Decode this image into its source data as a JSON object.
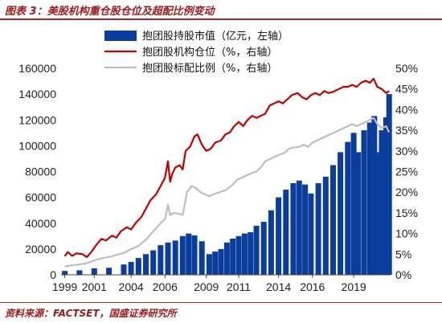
{
  "header": {
    "title": "图表 3：美股机构重仓股仓位及超配比例变动"
  },
  "footer": {
    "source": "资料来源：FACTSET，国盛证券研究所"
  },
  "chart_data": {
    "type": "bar+line",
    "title": "图表 3：美股机构重仓股仓位及超配比例变动",
    "legend_position": "top-center",
    "grid": false,
    "x_range": [
      1998.75,
      2021.1
    ],
    "x_ticks": [
      "1999",
      "2001",
      "2004",
      "2006",
      "2009",
      "2011",
      "2014",
      "2016",
      "2019"
    ],
    "x_tick_values": [
      1999,
      2001,
      2003.5,
      2005.8,
      2008.6,
      2010.8,
      2013.5,
      2015.8,
      2018.6
    ],
    "y_left": {
      "range": [
        0,
        160000
      ],
      "ticks": [
        "0",
        "20000",
        "40000",
        "60000",
        "80000",
        "100000",
        "120000",
        "140000",
        "160000"
      ]
    },
    "y_right": {
      "range": [
        0,
        50
      ],
      "ticks": [
        "0%",
        "5%",
        "10%",
        "15%",
        "20%",
        "25%",
        "30%",
        "35%",
        "40%",
        "45%",
        "50%"
      ]
    },
    "series": [
      {
        "name": "抱团股持股市值（亿元，左轴）",
        "kind": "bar",
        "axis": "left",
        "color": "#0b3d9c",
        "points": [
          [
            1999.0,
            3000
          ],
          [
            2000.0,
            3500
          ],
          [
            2001.0,
            5000
          ],
          [
            2002.0,
            5500
          ],
          [
            2003.0,
            8000
          ],
          [
            2003.5,
            10000
          ],
          [
            2004.0,
            13000
          ],
          [
            2004.5,
            16000
          ],
          [
            2005.0,
            19000
          ],
          [
            2005.5,
            23000
          ],
          [
            2006.0,
            25000
          ],
          [
            2006.5,
            26500
          ],
          [
            2007.0,
            30000
          ],
          [
            2007.4,
            32000
          ],
          [
            2007.8,
            30500
          ],
          [
            2008.3,
            26000
          ],
          [
            2008.8,
            16000
          ],
          [
            2009.2,
            18000
          ],
          [
            2009.6,
            20000
          ],
          [
            2010.0,
            25000
          ],
          [
            2010.4,
            28000
          ],
          [
            2010.8,
            30000
          ],
          [
            2011.2,
            32000
          ],
          [
            2011.6,
            33000
          ],
          [
            2012.0,
            38000
          ],
          [
            2012.5,
            41000
          ],
          [
            2013.0,
            50000
          ],
          [
            2013.5,
            60000
          ],
          [
            2014.0,
            66000
          ],
          [
            2014.5,
            71000
          ],
          [
            2014.9,
            73000
          ],
          [
            2015.3,
            70000
          ],
          [
            2015.7,
            63000
          ],
          [
            2016.2,
            71000
          ],
          [
            2016.7,
            76000
          ],
          [
            2017.2,
            85000
          ],
          [
            2017.7,
            95000
          ],
          [
            2018.2,
            103000
          ],
          [
            2018.6,
            110000
          ],
          [
            2018.9,
            95000
          ],
          [
            2019.3,
            112000
          ],
          [
            2019.7,
            118000
          ],
          [
            2020.0,
            123000
          ],
          [
            2020.2,
            95000
          ],
          [
            2020.5,
            112000
          ],
          [
            2020.8,
            122000
          ],
          [
            2021.0,
            140000
          ]
        ]
      },
      {
        "name": "抱团股机构仓位（%，右轴）",
        "kind": "line",
        "axis": "right",
        "color": "#c00000",
        "points": [
          [
            1999.0,
            4.5
          ],
          [
            1999.2,
            5.5
          ],
          [
            1999.5,
            4.6
          ],
          [
            1999.8,
            5.2
          ],
          [
            2000.2,
            5.0
          ],
          [
            2000.5,
            4.3
          ],
          [
            2000.8,
            5.5
          ],
          [
            2001.2,
            7.5
          ],
          [
            2001.5,
            8.7
          ],
          [
            2001.8,
            8.3
          ],
          [
            2002.2,
            9.5
          ],
          [
            2002.5,
            9.0
          ],
          [
            2002.8,
            10.5
          ],
          [
            2003.2,
            11.5
          ],
          [
            2003.5,
            11.0
          ],
          [
            2003.8,
            12.5
          ],
          [
            2004.2,
            14.0
          ],
          [
            2004.5,
            16.0
          ],
          [
            2004.8,
            18.0
          ],
          [
            2005.2,
            19.5
          ],
          [
            2005.5,
            21.5
          ],
          [
            2005.8,
            23.5
          ],
          [
            2006.0,
            27.5
          ],
          [
            2006.15,
            22.5
          ],
          [
            2006.3,
            24.5
          ],
          [
            2006.5,
            26.0
          ],
          [
            2006.8,
            26.5
          ],
          [
            2007.0,
            25.5
          ],
          [
            2007.2,
            30.0
          ],
          [
            2007.5,
            31.0
          ],
          [
            2007.8,
            33.5
          ],
          [
            2008.0,
            34.0
          ],
          [
            2008.3,
            31.5
          ],
          [
            2008.6,
            30.0
          ],
          [
            2008.9,
            30.5
          ],
          [
            2009.2,
            32.0
          ],
          [
            2009.6,
            32.5
          ],
          [
            2009.9,
            34.0
          ],
          [
            2010.2,
            34.5
          ],
          [
            2010.5,
            36.0
          ],
          [
            2010.8,
            37.0
          ],
          [
            2011.1,
            36.0
          ],
          [
            2011.4,
            37.5
          ],
          [
            2011.7,
            38.5
          ],
          [
            2012.0,
            38.0
          ],
          [
            2012.3,
            38.5
          ],
          [
            2012.6,
            39.0
          ],
          [
            2012.9,
            41.0
          ],
          [
            2013.2,
            41.5
          ],
          [
            2013.5,
            42.0
          ],
          [
            2013.8,
            41.5
          ],
          [
            2014.1,
            42.5
          ],
          [
            2014.4,
            43.5
          ],
          [
            2014.8,
            44.0
          ],
          [
            2015.1,
            43.0
          ],
          [
            2015.4,
            42.5
          ],
          [
            2015.7,
            43.5
          ],
          [
            2016.0,
            44.0
          ],
          [
            2016.3,
            43.5
          ],
          [
            2016.6,
            44.5
          ],
          [
            2016.9,
            44.0
          ],
          [
            2017.2,
            44.3
          ],
          [
            2017.6,
            45.0
          ],
          [
            2017.9,
            45.5
          ],
          [
            2018.2,
            45.5
          ],
          [
            2018.5,
            46.0
          ],
          [
            2018.8,
            45.5
          ],
          [
            2019.1,
            46.5
          ],
          [
            2019.4,
            47.0
          ],
          [
            2019.7,
            46.5
          ],
          [
            2019.95,
            47.5
          ],
          [
            2020.2,
            45.5
          ],
          [
            2020.5,
            45.0
          ],
          [
            2020.8,
            44.0
          ],
          [
            2021.0,
            44.5
          ]
        ]
      },
      {
        "name": "抱团股标配比例（%，右轴）",
        "kind": "line",
        "axis": "right",
        "color": "#bdbdbd",
        "points": [
          [
            1999.0,
            2.0
          ],
          [
            1999.5,
            2.3
          ],
          [
            2000.0,
            2.5
          ],
          [
            2000.5,
            2.8
          ],
          [
            2001.0,
            3.5
          ],
          [
            2001.5,
            4.0
          ],
          [
            2002.0,
            4.3
          ],
          [
            2002.5,
            4.8
          ],
          [
            2003.0,
            5.3
          ],
          [
            2003.5,
            6.2
          ],
          [
            2004.0,
            7.0
          ],
          [
            2004.5,
            8.5
          ],
          [
            2005.0,
            10.5
          ],
          [
            2005.5,
            12.5
          ],
          [
            2005.8,
            13.5
          ],
          [
            2006.0,
            17.0
          ],
          [
            2006.15,
            14.5
          ],
          [
            2006.4,
            15.0
          ],
          [
            2006.7,
            14.8
          ],
          [
            2007.0,
            14.5
          ],
          [
            2007.3,
            20.0
          ],
          [
            2007.6,
            21.5
          ],
          [
            2007.9,
            21.0
          ],
          [
            2008.2,
            20.0
          ],
          [
            2008.5,
            19.5
          ],
          [
            2008.8,
            19.0
          ],
          [
            2009.1,
            19.5
          ],
          [
            2009.5,
            20.0
          ],
          [
            2009.9,
            20.5
          ],
          [
            2010.3,
            21.5
          ],
          [
            2010.7,
            23.0
          ],
          [
            2011.0,
            23.5
          ],
          [
            2011.3,
            24.0
          ],
          [
            2011.6,
            24.5
          ],
          [
            2012.0,
            25.0
          ],
          [
            2012.3,
            26.0
          ],
          [
            2012.6,
            27.5
          ],
          [
            2012.9,
            28.0
          ],
          [
            2013.2,
            28.5
          ],
          [
            2013.5,
            29.0
          ],
          [
            2013.9,
            29.5
          ],
          [
            2014.2,
            30.5
          ],
          [
            2014.5,
            30.8
          ],
          [
            2014.9,
            31.0
          ],
          [
            2015.2,
            31.5
          ],
          [
            2015.5,
            31.0
          ],
          [
            2015.8,
            32.0
          ],
          [
            2016.1,
            32.5
          ],
          [
            2016.4,
            33.0
          ],
          [
            2016.7,
            33.5
          ],
          [
            2017.0,
            34.0
          ],
          [
            2017.3,
            34.5
          ],
          [
            2017.6,
            35.0
          ],
          [
            2017.9,
            35.5
          ],
          [
            2018.2,
            36.0
          ],
          [
            2018.5,
            36.5
          ],
          [
            2018.8,
            36.0
          ],
          [
            2019.1,
            36.5
          ],
          [
            2019.4,
            37.0
          ],
          [
            2019.7,
            37.5
          ],
          [
            2019.95,
            38.0
          ],
          [
            2020.2,
            36.5
          ],
          [
            2020.5,
            35.5
          ],
          [
            2020.8,
            36.0
          ],
          [
            2021.0,
            34.5
          ]
        ]
      }
    ]
  }
}
